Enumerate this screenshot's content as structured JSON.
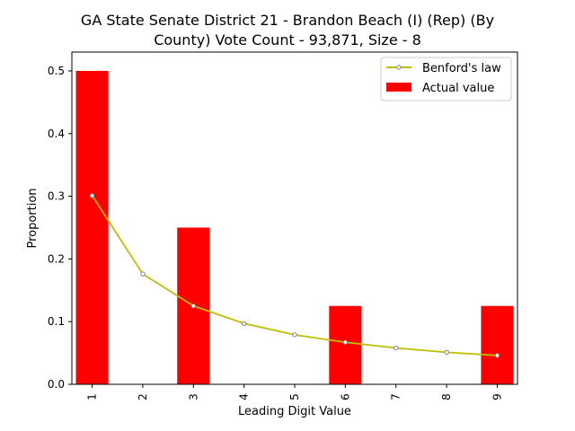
{
  "chart_data": {
    "type": "bar",
    "title_line1": "GA State Senate District 21 - Brandon Beach (I) (Rep) (By",
    "title_line2": "County) Vote Count - 93,871, Size - 8",
    "xlabel": "Leading Digit Value",
    "ylabel": "Proportion",
    "categories": [
      "1",
      "2",
      "3",
      "4",
      "5",
      "6",
      "7",
      "8",
      "9"
    ],
    "ylim": [
      0,
      0.53
    ],
    "yticks": [
      "0.0",
      "0.1",
      "0.2",
      "0.3",
      "0.4",
      "0.5"
    ],
    "legend_position": "top-right",
    "series": [
      {
        "name": "Benford's law",
        "kind": "line",
        "color": "#bfbf00",
        "values": [
          0.301,
          0.176,
          0.125,
          0.097,
          0.079,
          0.067,
          0.058,
          0.051,
          0.046
        ]
      },
      {
        "name": "Actual value",
        "kind": "bar",
        "color": "#ff0000",
        "values": [
          0.5,
          0,
          0.25,
          0,
          0,
          0.125,
          0,
          0,
          0.125
        ]
      }
    ]
  }
}
